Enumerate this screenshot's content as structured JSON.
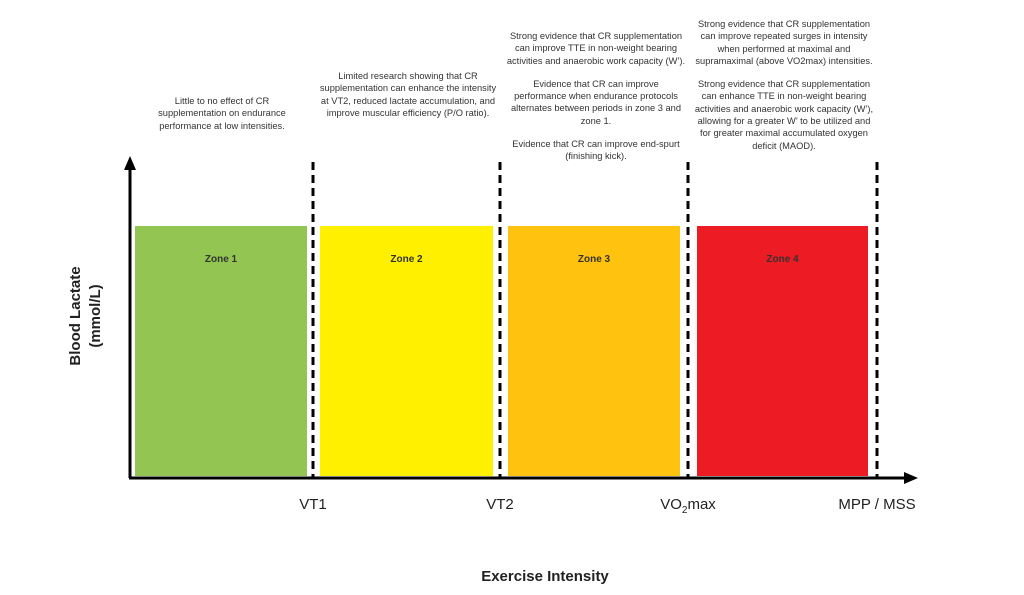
{
  "colors": {
    "zone1": "#92c551",
    "zone2": "#fff000",
    "zone3": "#ffc20e",
    "zone4": "#ed1c24"
  },
  "zones": [
    {
      "label": "Zone 1",
      "notes": [
        "Little to no effect of CR supplementation on endurance performance at low intensities."
      ]
    },
    {
      "label": "Zone 2",
      "notes": [
        "Limited research showing that CR supplementation can enhance the intensity at VT2, reduced lactate accumulation, and improve muscular efficiency (P/O ratio)."
      ]
    },
    {
      "label": "Zone 3",
      "notes": [
        "Strong evidence that CR supplementation can improve TTE in non-weight bearing activities and anaerobic work capacity (W’).",
        "Evidence that CR can improve performance when endurance protocols alternates between periods in zone 3 and zone 1.",
        "Evidence that CR can improve end-spurt (finishing kick)."
      ]
    },
    {
      "label": "Zone 4",
      "notes": [
        "Strong evidence that CR supplementation can improve repeated surges in intensity when performed at maximal and supramaximal (above VO2max) intensities.",
        "Strong evidence that CR supplementation can enhance TTE in non-weight bearing activities and anaerobic work capacity (W’), allowing for a greater W’ to be utilized and for greater maximal accumulated oxygen deficit (MAOD)."
      ]
    }
  ],
  "thresholds": {
    "vt1": "VT1",
    "vt2": "VT2",
    "vo2_base": "VO",
    "vo2_sub": "2",
    "vo2_rest": "max",
    "mpp": "MPP / MSS"
  },
  "axes": {
    "x": "Exercise Intensity",
    "y_line1": "Blood Lactate",
    "y_line2": "(mmol/L)"
  }
}
